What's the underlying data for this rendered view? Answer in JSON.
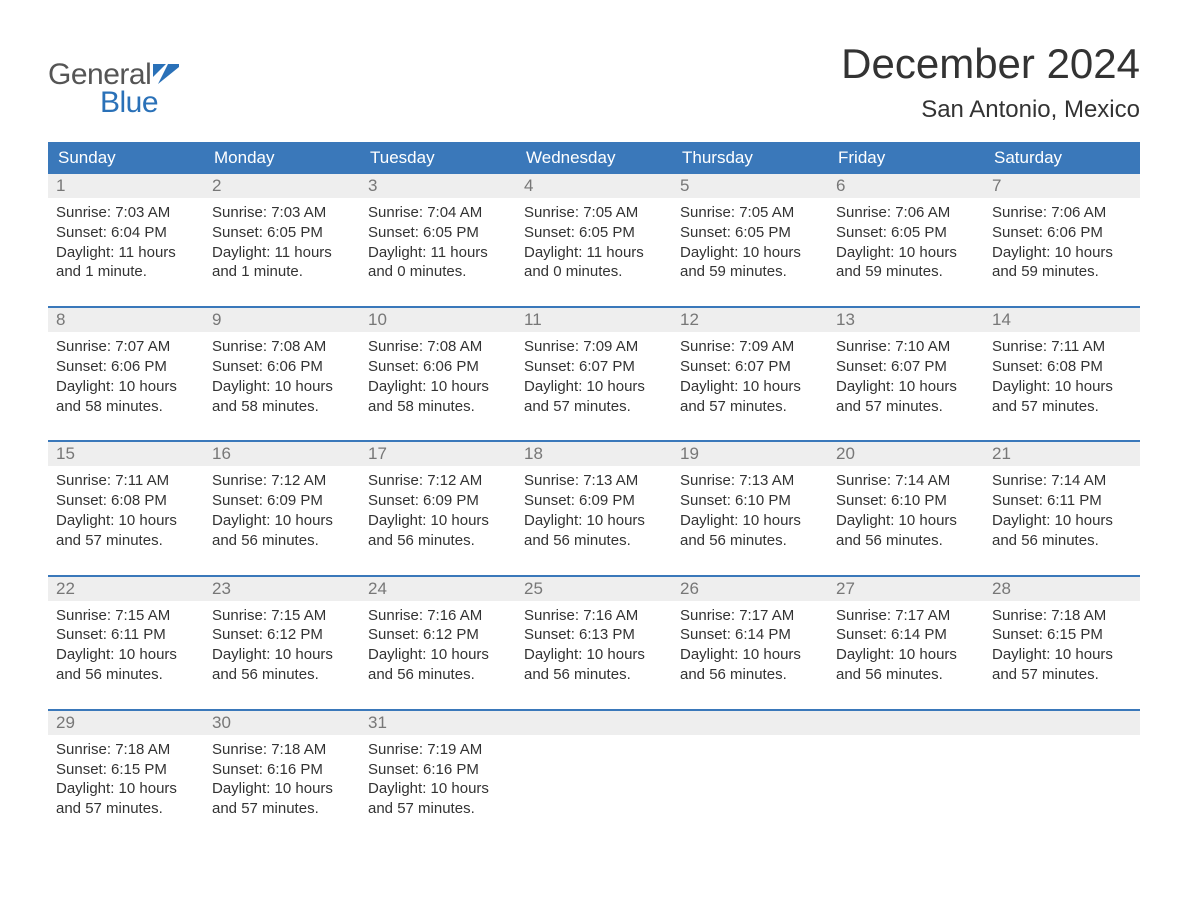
{
  "brand": {
    "part1": "General",
    "part2": "Blue",
    "color_text": "#555555",
    "color_blue": "#2a71b8"
  },
  "title": {
    "month": "December 2024",
    "location": "San Antonio, Mexico",
    "title_fontsize": 42,
    "location_fontsize": 24
  },
  "colors": {
    "header_bg": "#3a78ba",
    "header_text": "#ffffff",
    "daynum_bg": "#eeeeee",
    "daynum_text": "#777777",
    "body_text": "#333333",
    "row_border": "#3a78ba",
    "background": "#ffffff"
  },
  "daysOfWeek": [
    "Sunday",
    "Monday",
    "Tuesday",
    "Wednesday",
    "Thursday",
    "Friday",
    "Saturday"
  ],
  "weeks": [
    [
      {
        "n": "1",
        "sunrise": "Sunrise: 7:03 AM",
        "sunset": "Sunset: 6:04 PM",
        "d1": "Daylight: 11 hours",
        "d2": "and 1 minute."
      },
      {
        "n": "2",
        "sunrise": "Sunrise: 7:03 AM",
        "sunset": "Sunset: 6:05 PM",
        "d1": "Daylight: 11 hours",
        "d2": "and 1 minute."
      },
      {
        "n": "3",
        "sunrise": "Sunrise: 7:04 AM",
        "sunset": "Sunset: 6:05 PM",
        "d1": "Daylight: 11 hours",
        "d2": "and 0 minutes."
      },
      {
        "n": "4",
        "sunrise": "Sunrise: 7:05 AM",
        "sunset": "Sunset: 6:05 PM",
        "d1": "Daylight: 11 hours",
        "d2": "and 0 minutes."
      },
      {
        "n": "5",
        "sunrise": "Sunrise: 7:05 AM",
        "sunset": "Sunset: 6:05 PM",
        "d1": "Daylight: 10 hours",
        "d2": "and 59 minutes."
      },
      {
        "n": "6",
        "sunrise": "Sunrise: 7:06 AM",
        "sunset": "Sunset: 6:05 PM",
        "d1": "Daylight: 10 hours",
        "d2": "and 59 minutes."
      },
      {
        "n": "7",
        "sunrise": "Sunrise: 7:06 AM",
        "sunset": "Sunset: 6:06 PM",
        "d1": "Daylight: 10 hours",
        "d2": "and 59 minutes."
      }
    ],
    [
      {
        "n": "8",
        "sunrise": "Sunrise: 7:07 AM",
        "sunset": "Sunset: 6:06 PM",
        "d1": "Daylight: 10 hours",
        "d2": "and 58 minutes."
      },
      {
        "n": "9",
        "sunrise": "Sunrise: 7:08 AM",
        "sunset": "Sunset: 6:06 PM",
        "d1": "Daylight: 10 hours",
        "d2": "and 58 minutes."
      },
      {
        "n": "10",
        "sunrise": "Sunrise: 7:08 AM",
        "sunset": "Sunset: 6:06 PM",
        "d1": "Daylight: 10 hours",
        "d2": "and 58 minutes."
      },
      {
        "n": "11",
        "sunrise": "Sunrise: 7:09 AM",
        "sunset": "Sunset: 6:07 PM",
        "d1": "Daylight: 10 hours",
        "d2": "and 57 minutes."
      },
      {
        "n": "12",
        "sunrise": "Sunrise: 7:09 AM",
        "sunset": "Sunset: 6:07 PM",
        "d1": "Daylight: 10 hours",
        "d2": "and 57 minutes."
      },
      {
        "n": "13",
        "sunrise": "Sunrise: 7:10 AM",
        "sunset": "Sunset: 6:07 PM",
        "d1": "Daylight: 10 hours",
        "d2": "and 57 minutes."
      },
      {
        "n": "14",
        "sunrise": "Sunrise: 7:11 AM",
        "sunset": "Sunset: 6:08 PM",
        "d1": "Daylight: 10 hours",
        "d2": "and 57 minutes."
      }
    ],
    [
      {
        "n": "15",
        "sunrise": "Sunrise: 7:11 AM",
        "sunset": "Sunset: 6:08 PM",
        "d1": "Daylight: 10 hours",
        "d2": "and 57 minutes."
      },
      {
        "n": "16",
        "sunrise": "Sunrise: 7:12 AM",
        "sunset": "Sunset: 6:09 PM",
        "d1": "Daylight: 10 hours",
        "d2": "and 56 minutes."
      },
      {
        "n": "17",
        "sunrise": "Sunrise: 7:12 AM",
        "sunset": "Sunset: 6:09 PM",
        "d1": "Daylight: 10 hours",
        "d2": "and 56 minutes."
      },
      {
        "n": "18",
        "sunrise": "Sunrise: 7:13 AM",
        "sunset": "Sunset: 6:09 PM",
        "d1": "Daylight: 10 hours",
        "d2": "and 56 minutes."
      },
      {
        "n": "19",
        "sunrise": "Sunrise: 7:13 AM",
        "sunset": "Sunset: 6:10 PM",
        "d1": "Daylight: 10 hours",
        "d2": "and 56 minutes."
      },
      {
        "n": "20",
        "sunrise": "Sunrise: 7:14 AM",
        "sunset": "Sunset: 6:10 PM",
        "d1": "Daylight: 10 hours",
        "d2": "and 56 minutes."
      },
      {
        "n": "21",
        "sunrise": "Sunrise: 7:14 AM",
        "sunset": "Sunset: 6:11 PM",
        "d1": "Daylight: 10 hours",
        "d2": "and 56 minutes."
      }
    ],
    [
      {
        "n": "22",
        "sunrise": "Sunrise: 7:15 AM",
        "sunset": "Sunset: 6:11 PM",
        "d1": "Daylight: 10 hours",
        "d2": "and 56 minutes."
      },
      {
        "n": "23",
        "sunrise": "Sunrise: 7:15 AM",
        "sunset": "Sunset: 6:12 PM",
        "d1": "Daylight: 10 hours",
        "d2": "and 56 minutes."
      },
      {
        "n": "24",
        "sunrise": "Sunrise: 7:16 AM",
        "sunset": "Sunset: 6:12 PM",
        "d1": "Daylight: 10 hours",
        "d2": "and 56 minutes."
      },
      {
        "n": "25",
        "sunrise": "Sunrise: 7:16 AM",
        "sunset": "Sunset: 6:13 PM",
        "d1": "Daylight: 10 hours",
        "d2": "and 56 minutes."
      },
      {
        "n": "26",
        "sunrise": "Sunrise: 7:17 AM",
        "sunset": "Sunset: 6:14 PM",
        "d1": "Daylight: 10 hours",
        "d2": "and 56 minutes."
      },
      {
        "n": "27",
        "sunrise": "Sunrise: 7:17 AM",
        "sunset": "Sunset: 6:14 PM",
        "d1": "Daylight: 10 hours",
        "d2": "and 56 minutes."
      },
      {
        "n": "28",
        "sunrise": "Sunrise: 7:18 AM",
        "sunset": "Sunset: 6:15 PM",
        "d1": "Daylight: 10 hours",
        "d2": "and 57 minutes."
      }
    ],
    [
      {
        "n": "29",
        "sunrise": "Sunrise: 7:18 AM",
        "sunset": "Sunset: 6:15 PM",
        "d1": "Daylight: 10 hours",
        "d2": "and 57 minutes."
      },
      {
        "n": "30",
        "sunrise": "Sunrise: 7:18 AM",
        "sunset": "Sunset: 6:16 PM",
        "d1": "Daylight: 10 hours",
        "d2": "and 57 minutes."
      },
      {
        "n": "31",
        "sunrise": "Sunrise: 7:19 AM",
        "sunset": "Sunset: 6:16 PM",
        "d1": "Daylight: 10 hours",
        "d2": "and 57 minutes."
      },
      null,
      null,
      null,
      null
    ]
  ]
}
